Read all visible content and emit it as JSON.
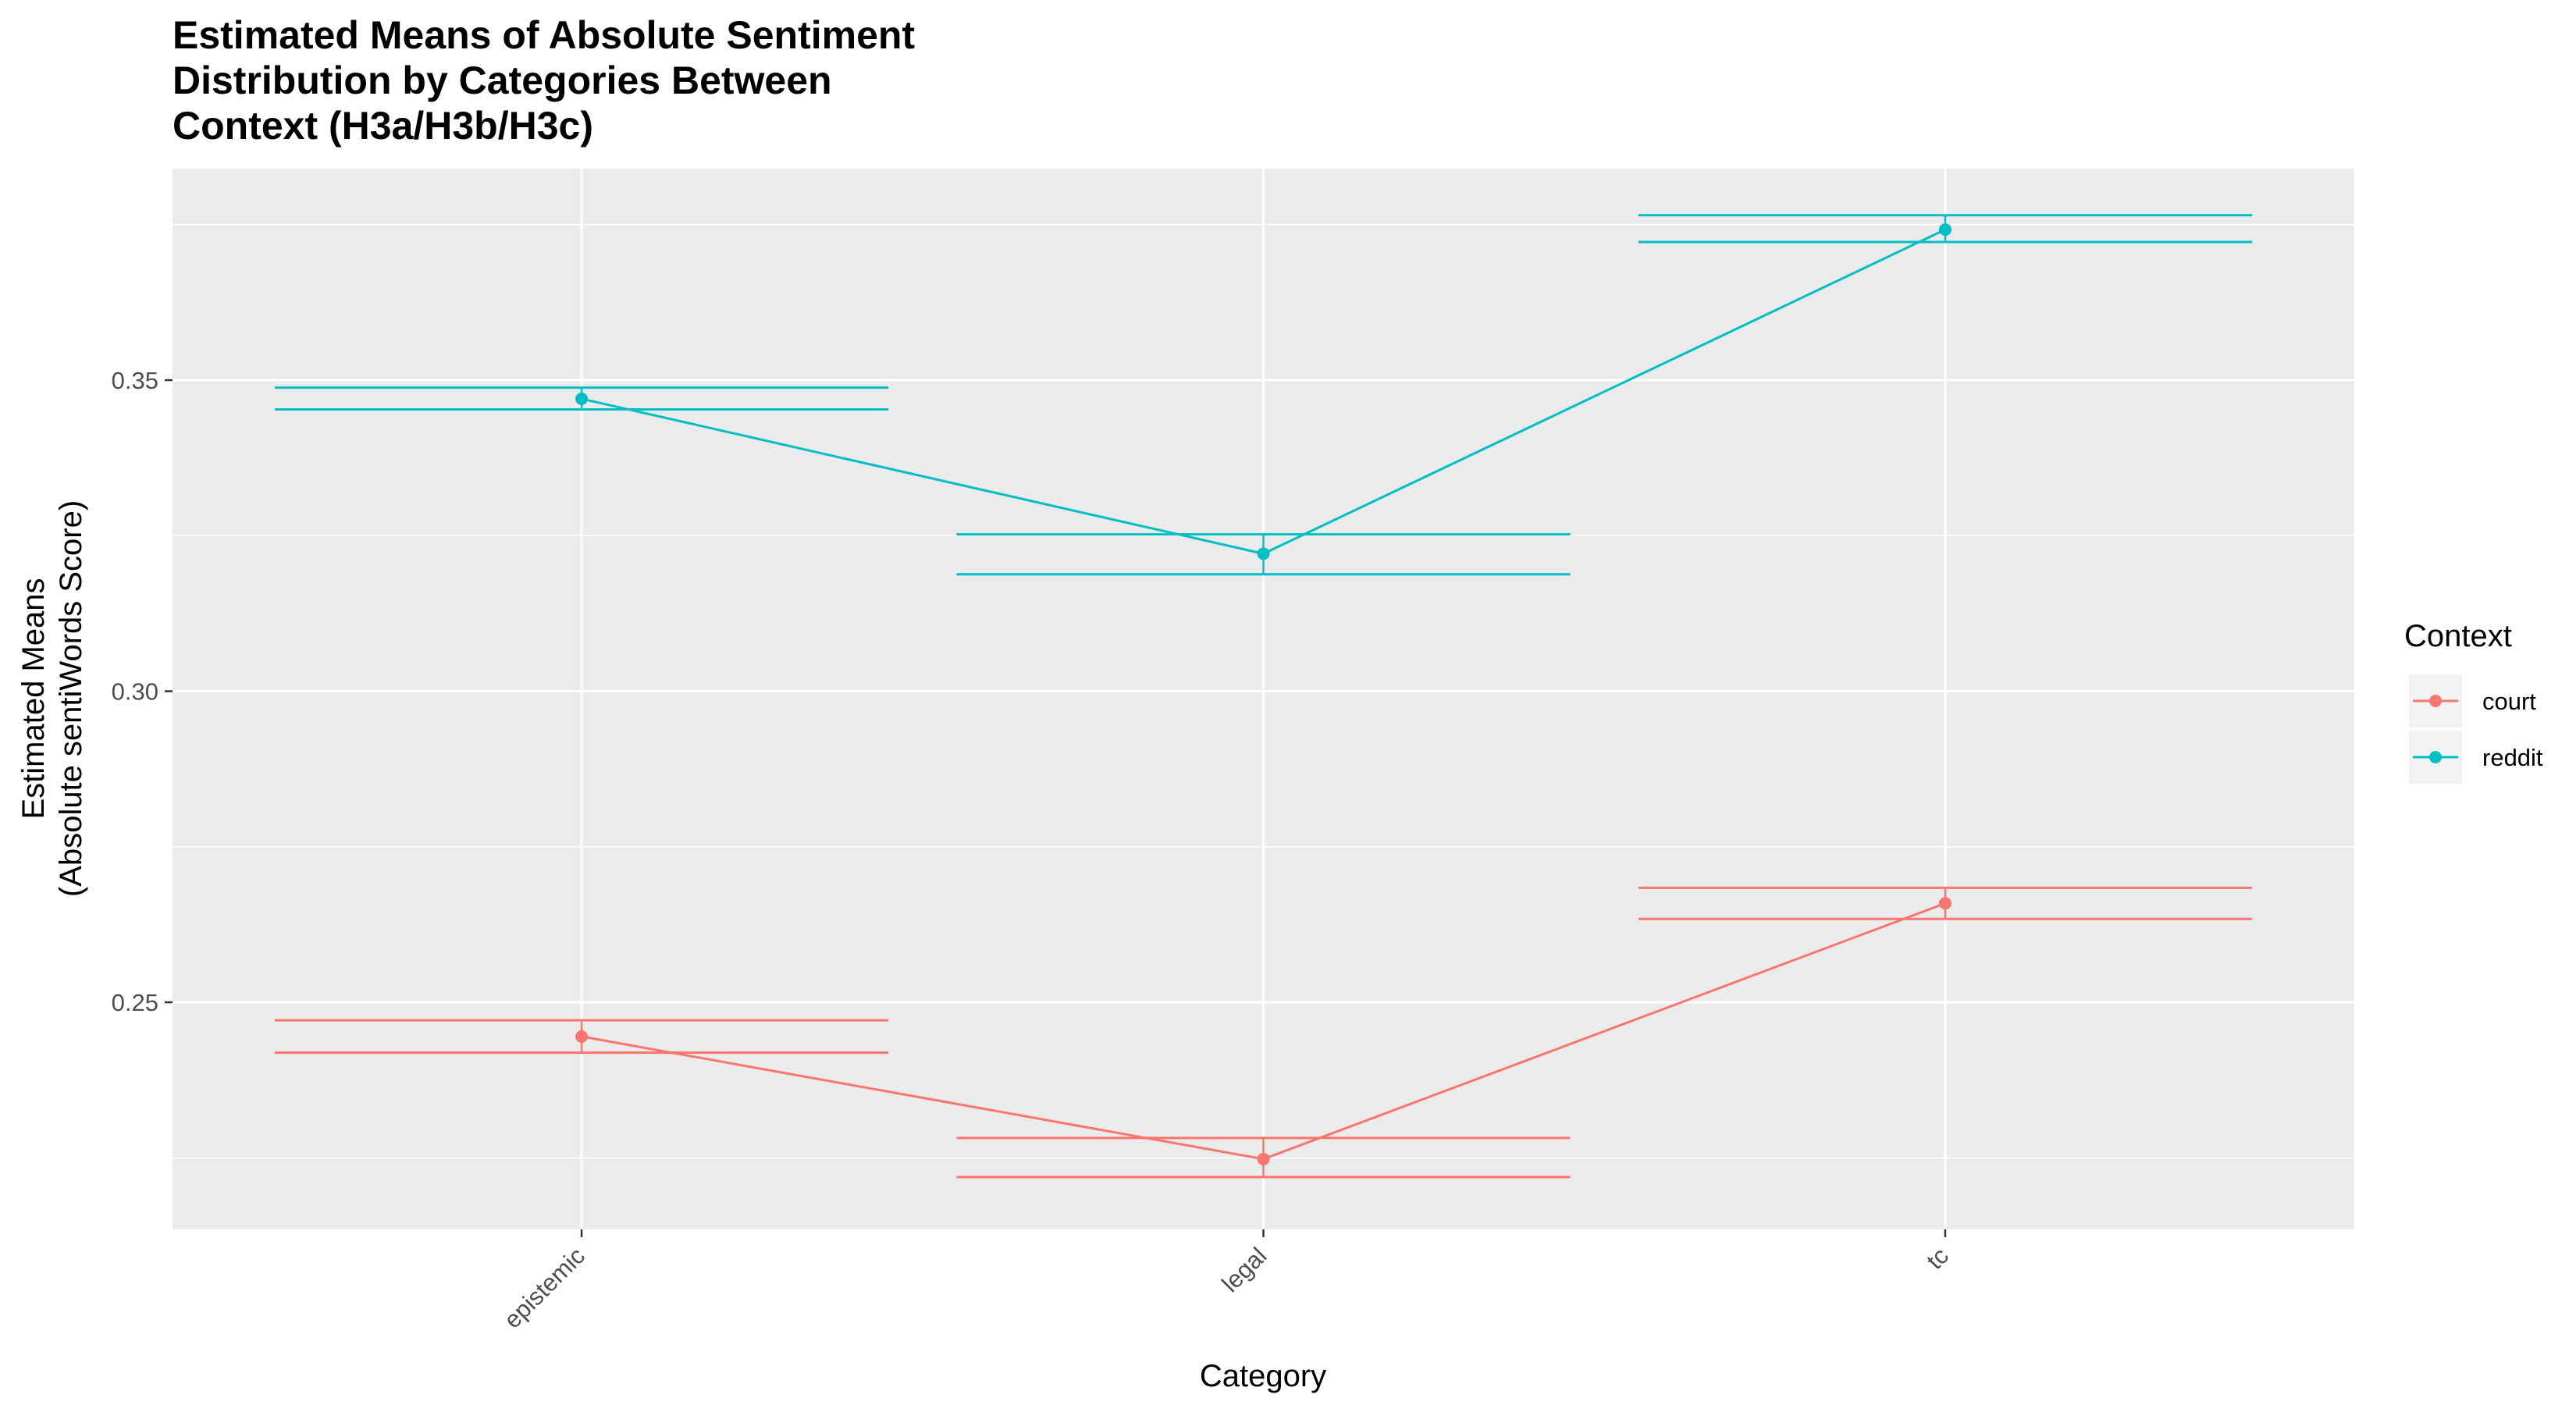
{
  "chart_data": {
    "type": "line",
    "title_lines": [
      "Estimated Means of Absolute Sentiment",
      "Distribution by Categories Between",
      "Context (H3a/H3b/H3c)"
    ],
    "xlabel": "Category",
    "ylabel_lines": [
      "Estimated Means",
      "(Absolute sentiWords Score)"
    ],
    "categories": [
      "epistemic",
      "legal",
      "tc"
    ],
    "yticks": [
      0.25,
      0.3,
      0.35
    ],
    "ytick_labels": [
      "0.25",
      "0.30",
      "0.35"
    ],
    "ylim": [
      0.2135,
      0.384
    ],
    "grid": true,
    "legend": {
      "title": "Context",
      "position": "right"
    },
    "series": [
      {
        "name": "court",
        "color": "#F8766D",
        "values": [
          0.2445,
          0.2248,
          0.2659
        ],
        "lower": [
          0.2419,
          0.2219,
          0.2634
        ],
        "upper": [
          0.2471,
          0.2282,
          0.2684
        ]
      },
      {
        "name": "reddit",
        "color": "#00BFC4",
        "values": [
          0.347,
          0.3221,
          0.3742
        ],
        "lower": [
          0.3453,
          0.3188,
          0.3722
        ],
        "upper": [
          0.3488,
          0.3252,
          0.3765
        ]
      }
    ]
  }
}
